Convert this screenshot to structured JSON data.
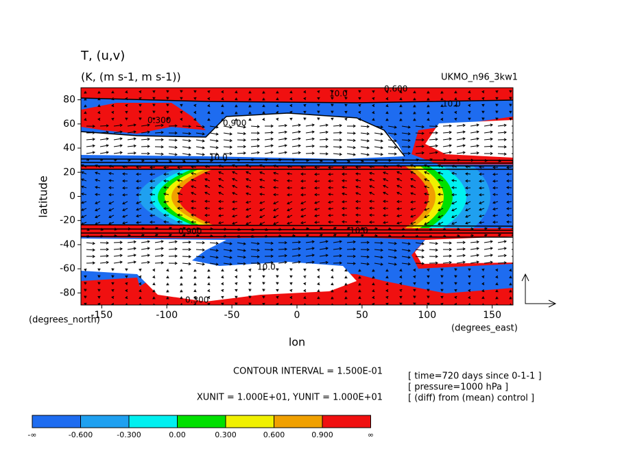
{
  "chart_data": {
    "type": "contour",
    "title": "T, (u,v)",
    "subtitle": "(K, (m s-1, m s-1))",
    "run_label": "UKMO_n96_3kw1",
    "y_label": "latitude",
    "x_label": "lon",
    "y_unit": "(degrees_north)",
    "x_unit": "(degrees_east)",
    "xlim": [
      -166,
      166
    ],
    "ylim": [
      -90,
      90
    ],
    "xticks": [
      -150,
      -100,
      -50,
      0,
      50,
      100,
      150
    ],
    "yticks": [
      -80,
      -60,
      -40,
      -20,
      0,
      20,
      40,
      60,
      80
    ],
    "contour_labels": [
      "10.0",
      "0.300",
      "0.900",
      "0.600",
      "10.0",
      "10.0",
      "0.900",
      "10.0",
      "10.0",
      "0.300"
    ],
    "notes": [
      "CONTOUR INTERVAL = 1.500E-01",
      "XUNIT = 1.000E+01, YUNIT = 1.000E+01"
    ],
    "info": [
      "[ time=720 days since 0-1-1 ]",
      "[ pressure=1000 hPa ]",
      "[ (diff) from (mean) control ]"
    ],
    "colorbar": {
      "labels": [
        "-∞",
        "-0.600",
        "-0.300",
        "0.00",
        "0.300",
        "0.600",
        "0.900",
        "∞"
      ],
      "colors": [
        "#1e6cf0",
        "#1fa0f0",
        "#00f0f0",
        "#00e000",
        "#f0f000",
        "#f0a000",
        "#f01010"
      ]
    }
  }
}
